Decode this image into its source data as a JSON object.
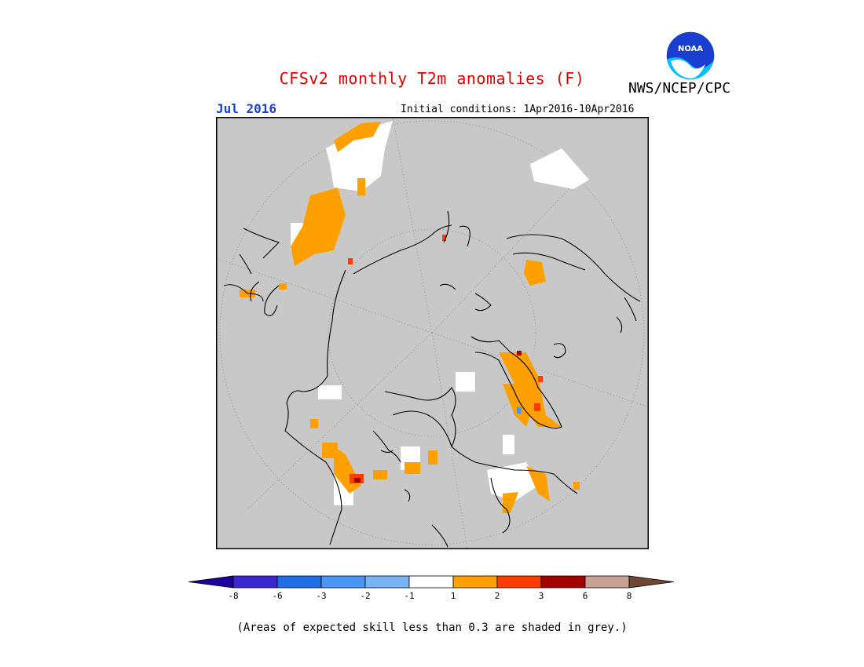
{
  "header": {
    "title": "CFSv2 monthly T2m anomalies (F)",
    "month": "Jul 2016",
    "initial_conditions": "Initial conditions: 1Apr2016-10Apr2016",
    "agency": "NWS/NCEP/CPC",
    "logo_text": "NOAA"
  },
  "legend": {
    "tick_labels": [
      "-8",
      "-6",
      "-3",
      "-2",
      "-1",
      "1",
      "2",
      "3",
      "6",
      "8"
    ],
    "colors": {
      "lt_-8": "#1e00a0",
      "-8_-6": "#3c28d2",
      "-6_-3": "#1e6ee6",
      "-3_-2": "#4a96f5",
      "-2_-1": "#78b4f5",
      "-1_1": "#ffffff",
      "1_2": "#ffa000",
      "2_3": "#ff3c00",
      "3_6": "#a50000",
      "6_8": "#c8a096",
      "gt_8": "#6e4632"
    }
  },
  "map_colors": {
    "background": "#c8c8c8",
    "land_outline": "#000000",
    "grid": "#888888",
    "neutral": "#ffffff",
    "warm1": "#ffa000",
    "warm2": "#ff3c00",
    "warm3": "#a50000",
    "cool1": "#4a96f5"
  },
  "footer": {
    "skill_note": "(Areas of expected skill less than 0.3 are shaded in grey.)"
  }
}
